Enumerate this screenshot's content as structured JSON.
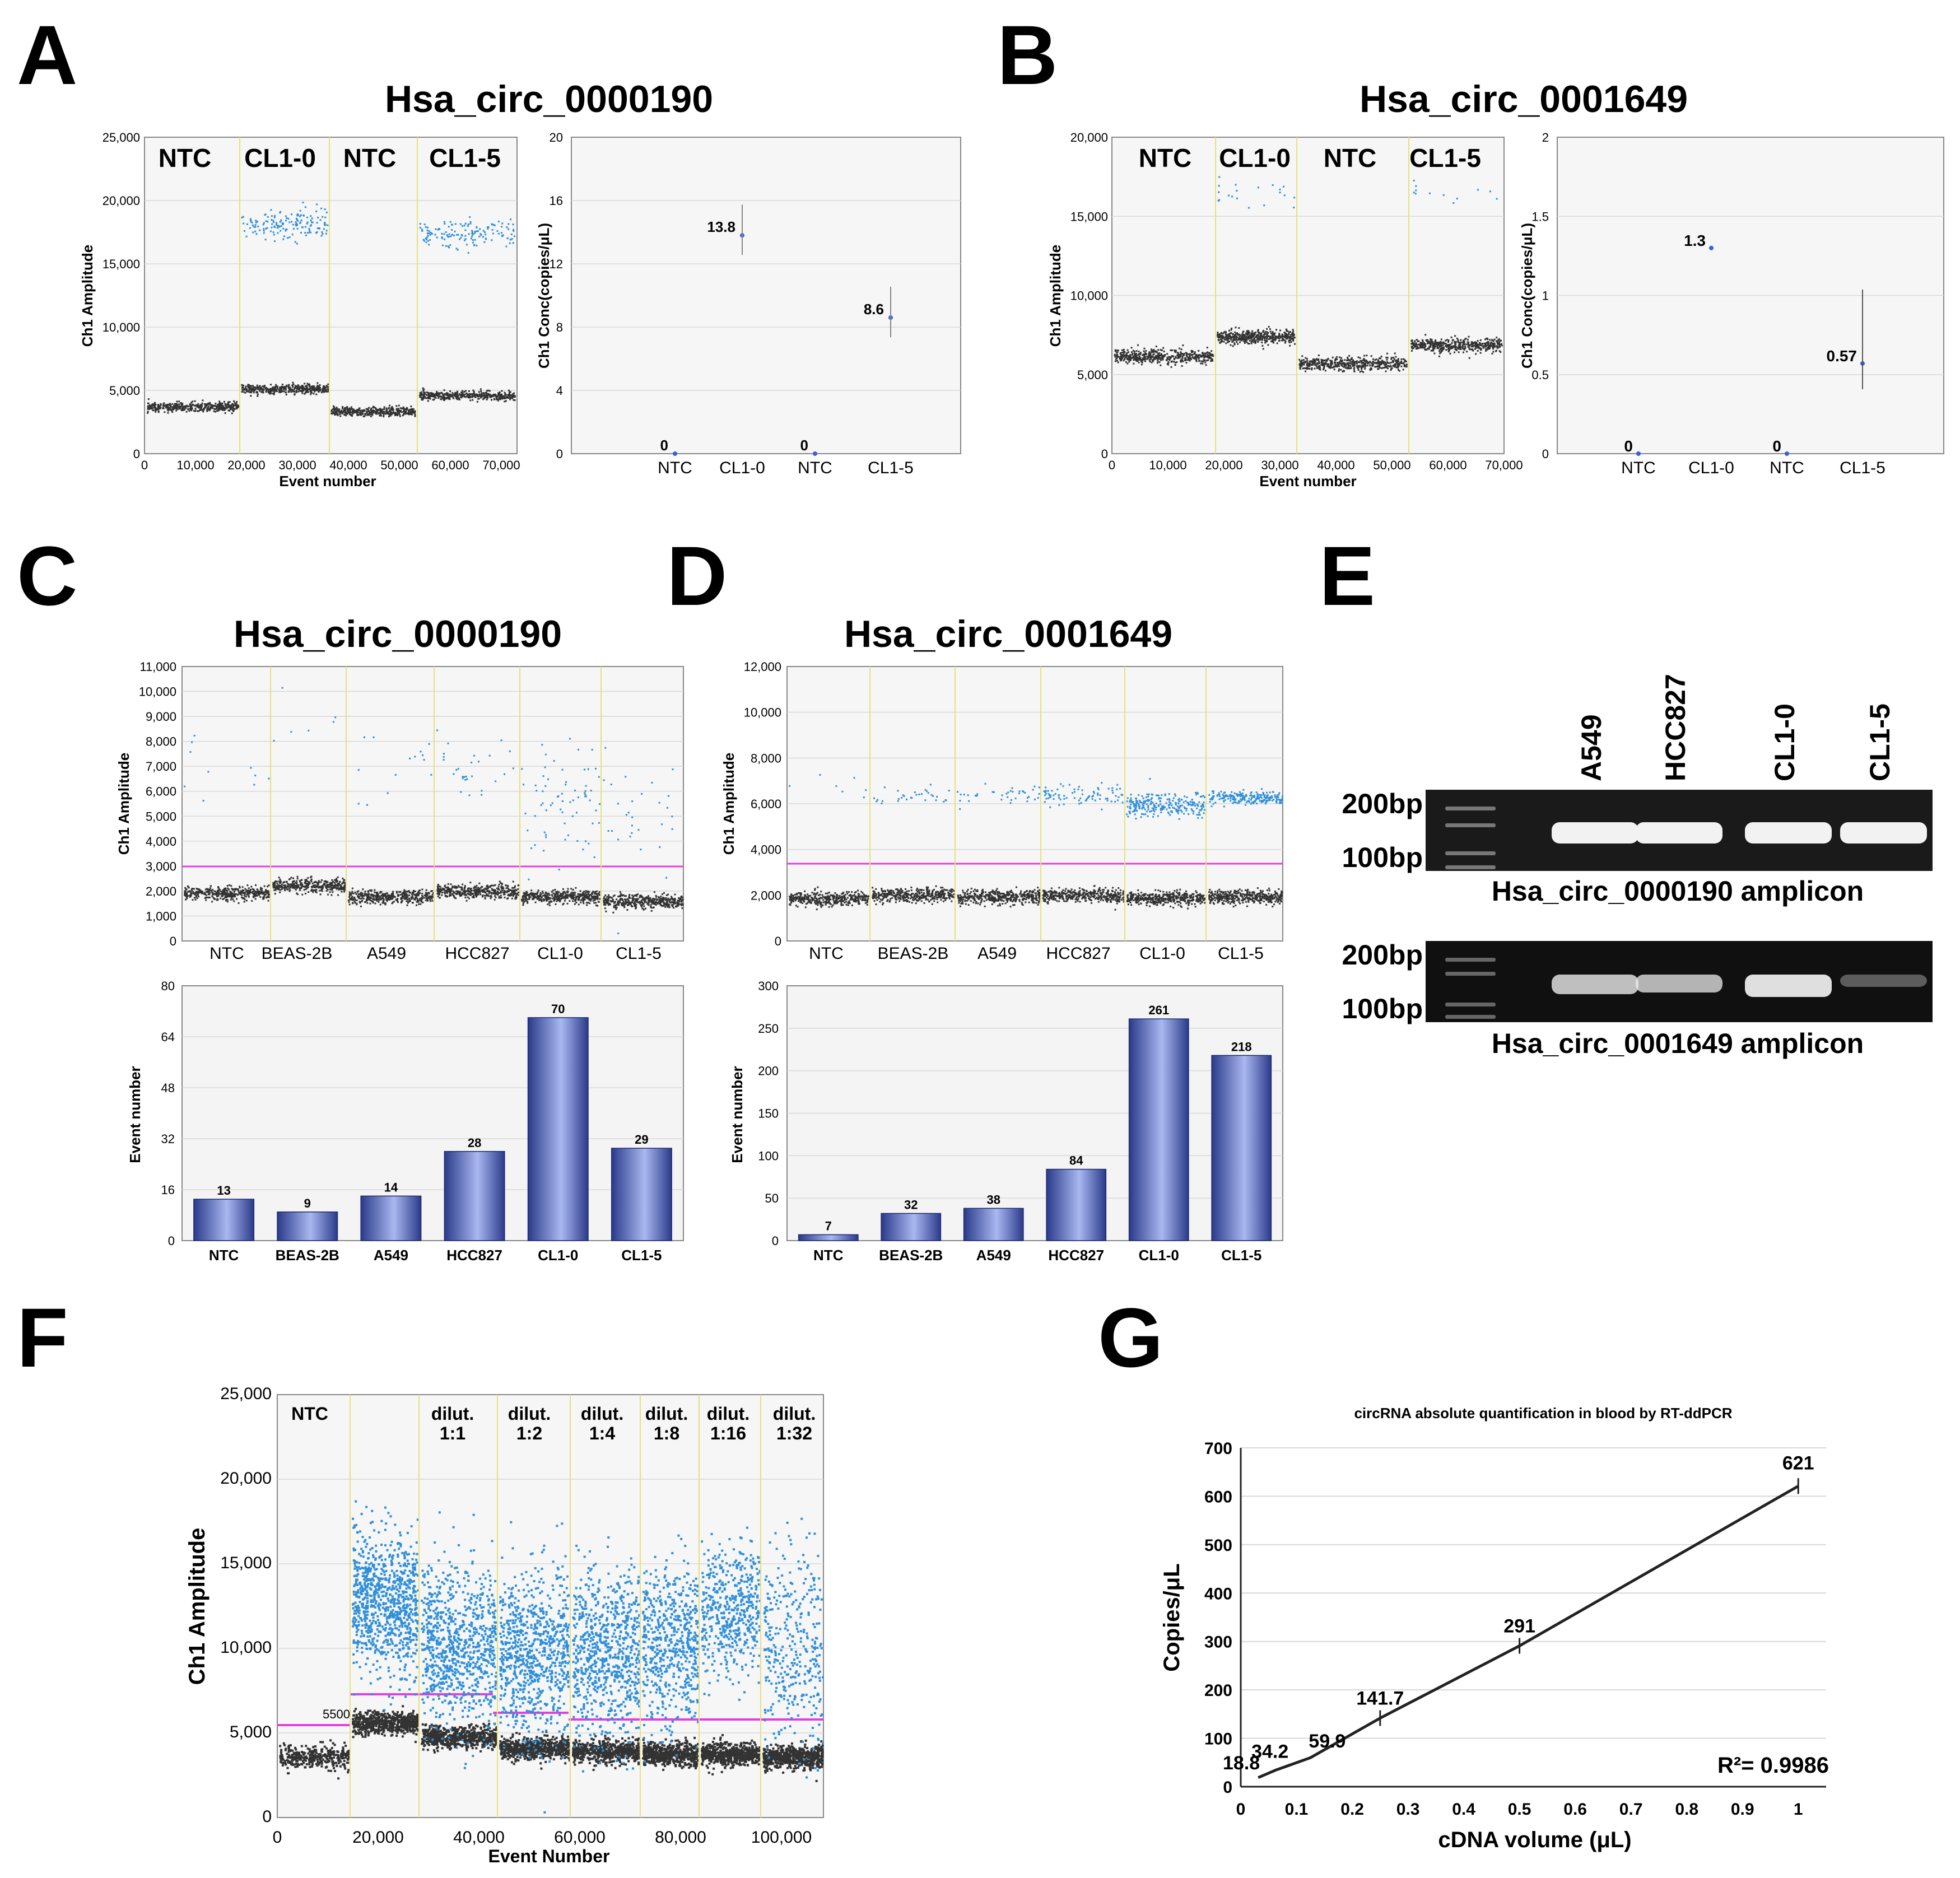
{
  "panels": {
    "A": {
      "letter": "A",
      "title": "Hsa_circ_0000190",
      "scatter": {
        "ylabel": "Ch1 Amplitude",
        "xlabel": "Event number",
        "yticks": [
          "0",
          "5,000",
          "10,000",
          "15,000",
          "20,000",
          "25,000"
        ],
        "xticks": [
          "0",
          "10,000",
          "20,000",
          "30,000",
          "40,000",
          "50,000",
          "60,000",
          "70,000"
        ],
        "groups": [
          "NTC",
          "CL1-0",
          "NTC",
          "CL1-5"
        ]
      },
      "conc": {
        "ylabel": "Ch1 Conc(copies/μL)",
        "yticks": [
          "0",
          "4",
          "8",
          "12",
          "16",
          "20"
        ],
        "categories": [
          "NTC",
          "CL1-0",
          "NTC",
          "CL1-5"
        ],
        "labels": [
          "0",
          "13.8",
          "0",
          "8.6"
        ]
      }
    },
    "B": {
      "letter": "B",
      "title": "Hsa_circ_0001649",
      "scatter": {
        "ylabel": "Ch1 Amplitude",
        "xlabel": "Event number",
        "yticks": [
          "0",
          "5,000",
          "10,000",
          "15,000",
          "20,000"
        ],
        "xticks": [
          "0",
          "10,000",
          "20,000",
          "30,000",
          "40,000",
          "50,000",
          "60,000",
          "70,000"
        ],
        "groups": [
          "NTC",
          "CL1-0",
          "NTC",
          "CL1-5"
        ]
      },
      "conc": {
        "ylabel": "Ch1 Conc(copies/μL)",
        "yticks": [
          "0",
          "0.5",
          "1",
          "1.5",
          "2"
        ],
        "categories": [
          "NTC",
          "CL1-0",
          "NTC",
          "CL1-5"
        ],
        "labels": [
          "0",
          "1.3",
          "0",
          "0.57"
        ]
      }
    },
    "C": {
      "letter": "C",
      "title": "Hsa_circ_0000190",
      "scatter": {
        "ylabel": "Ch1 Amplitude",
        "yticks": [
          "0",
          "1,000",
          "2,000",
          "3,000",
          "4,000",
          "5,000",
          "6,000",
          "7,000",
          "8,000",
          "9,000",
          "10,000",
          "11,000"
        ],
        "groups": [
          "NTC",
          "BEAS-2B",
          "A549",
          "HCC827",
          "CL1-0",
          "CL1-5"
        ]
      },
      "bars": {
        "ylabel": "Event number",
        "yticks": [
          "0",
          "16",
          "32",
          "48",
          "64",
          "80"
        ]
      }
    },
    "D": {
      "letter": "D",
      "title": "Hsa_circ_0001649",
      "scatter": {
        "ylabel": "Ch1 Amplitude",
        "yticks": [
          "0",
          "2,000",
          "4,000",
          "6,000",
          "8,000",
          "10,000",
          "12,000"
        ],
        "groups": [
          "NTC",
          "BEAS-2B",
          "A549",
          "HCC827",
          "CL1-0",
          "CL1-5"
        ]
      },
      "bars": {
        "ylabel": "Event number",
        "yticks": [
          "0",
          "50",
          "100",
          "150",
          "200",
          "250",
          "300"
        ]
      }
    },
    "E": {
      "letter": "E",
      "lanes": [
        "A549",
        "HCC827",
        "CL1-0",
        "CL1-5"
      ],
      "ladder_top": "200bp",
      "ladder_bottom": "100bp",
      "caption1": "Hsa_circ_0000190 amplicon",
      "caption2": "Hsa_circ_0001649 amplicon",
      "ladder_top2": "200bp",
      "ladder_bottom2": "100bp"
    },
    "F": {
      "letter": "F",
      "ylabel": "Ch1 Amplitude",
      "xlabel": "Event Number",
      "yticks": [
        "0",
        "5,000",
        "10,000",
        "15,000",
        "20,000",
        "25,000"
      ],
      "xticks": [
        "0",
        "20,000",
        "40,000",
        "60,000",
        "80,000",
        "100,000"
      ],
      "threshold_label": "5500",
      "groups": [
        {
          "line1": "NTC",
          "line2": ""
        },
        {
          "line1": "dilut.",
          "line2": "1:1"
        },
        {
          "line1": "dilut.",
          "line2": "1:2"
        },
        {
          "line1": "dilut.",
          "line2": "1:4"
        },
        {
          "line1": "dilut.",
          "line2": "1:8"
        },
        {
          "line1": "dilut.",
          "line2": "1:16"
        },
        {
          "line1": "dilut.",
          "line2": "1:32"
        }
      ]
    },
    "G": {
      "letter": "G",
      "r2": "R²= 0.9986"
    }
  },
  "chart_data": [
    {
      "panel": "A-right",
      "type": "scatter",
      "categories": [
        "NTC",
        "CL1-0",
        "NTC",
        "CL1-5"
      ],
      "values": [
        0,
        13.8,
        0,
        8.6
      ],
      "ylabel": "Ch1 Conc(copies/μL)",
      "ylim": [
        0,
        20
      ]
    },
    {
      "panel": "B-right",
      "type": "scatter",
      "categories": [
        "NTC",
        "CL1-0",
        "NTC",
        "CL1-5"
      ],
      "values": [
        0,
        1.3,
        0,
        0.57
      ],
      "ylabel": "Ch1 Conc(copies/μL)",
      "ylim": [
        0,
        2
      ]
    },
    {
      "panel": "C-bottom",
      "type": "bar",
      "categories": [
        "NTC",
        "BEAS-2B",
        "A549",
        "HCC827",
        "CL1-0",
        "CL1-5"
      ],
      "values": [
        13,
        9,
        14,
        28,
        70,
        29
      ],
      "ylabel": "Event number",
      "ylim": [
        0,
        80
      ]
    },
    {
      "panel": "D-bottom",
      "type": "bar",
      "categories": [
        "NTC",
        "BEAS-2B",
        "A549",
        "HCC827",
        "CL1-0",
        "CL1-5"
      ],
      "values": [
        7,
        32,
        38,
        84,
        261,
        218
      ],
      "ylabel": "Event number",
      "ylim": [
        0,
        300
      ]
    },
    {
      "panel": "G",
      "type": "line",
      "title": "circRNA absolute quantification in blood by RT-ddPCR",
      "xlabel": "cDNA volume (μL)",
      "ylabel": "Copies/μL",
      "x": [
        0.03125,
        0.0625,
        0.125,
        0.25,
        0.5,
        1
      ],
      "y": [
        18.8,
        34.2,
        59.9,
        141.7,
        291,
        621
      ],
      "point_labels": [
        "18.8",
        "34.2",
        "59.9",
        "141.7",
        "291",
        "621"
      ],
      "xticks": [
        "0",
        "0.1",
        "0.2",
        "0.3",
        "0.4",
        "0.5",
        "0.6",
        "0.7",
        "0.8",
        "0.9",
        "1"
      ],
      "yticks": [
        "0",
        "100",
        "200",
        "300",
        "400",
        "500",
        "600",
        "700"
      ],
      "xlim": [
        0,
        1.05
      ],
      "ylim": [
        0,
        700
      ],
      "grid": true
    }
  ]
}
